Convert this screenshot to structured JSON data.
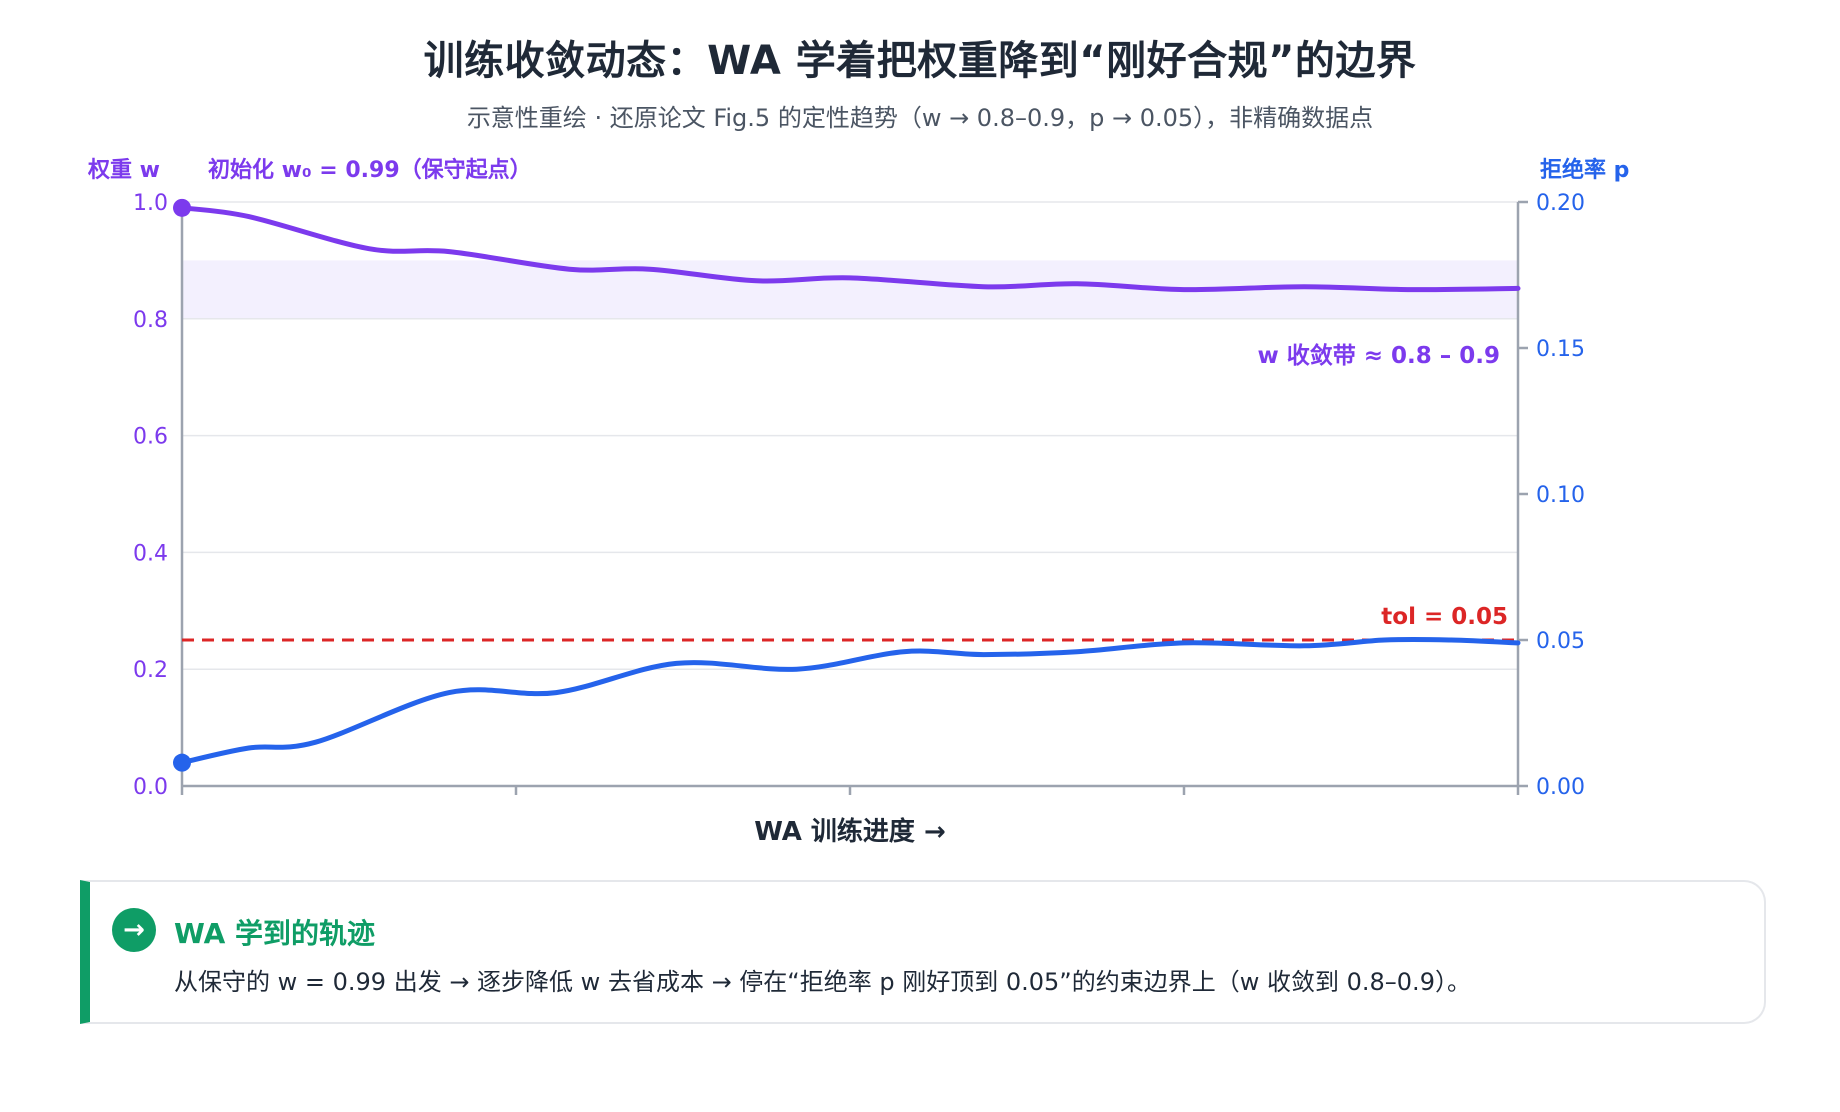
{
  "title": "训练收敛动态：WA 学着把权重降到“刚好合规”的边界",
  "subtitle": "示意性重绘 · 还原论文 Fig.5 的定性趋势（w → 0.8–0.9，p → 0.05），非精确数据点",
  "summary": {
    "icon": "→",
    "title": "WA 学到的轨迹",
    "body": "从保守的 w = 0.99 出发 → 逐步降低 w 去省成本 → 停在“拒绝率 p 刚好顶到 0.05”的约束边界上（w 收敛到 0.8–0.9）。"
  },
  "colors": {
    "weight": "#7c3aed",
    "rejection": "#2563eb",
    "tolerance": "#dc2626",
    "band": "#f3f0fe",
    "axis": "#9ca3af",
    "grid": "#e5e7eb",
    "accent": "#0f9d66"
  },
  "chart_data": {
    "type": "line",
    "title": "训练收敛动态：WA 学着把权重降到“刚好合规”的边界",
    "xlabel": "WA 训练进度 →",
    "ylabel_left": "权重 w",
    "ylabel_right": "拒绝率 p",
    "xlim": [
      0,
      1
    ],
    "ylim_left": [
      0,
      1.0
    ],
    "ylim_right": [
      0,
      0.2
    ],
    "yticks_left": [
      "0.0",
      "0.2",
      "0.4",
      "0.6",
      "0.8",
      "1.0"
    ],
    "yticks_right": [
      "0.00",
      "0.05",
      "0.10",
      "0.15",
      "0.20"
    ],
    "grid": true,
    "series": [
      {
        "name": "权重 w",
        "axis": "left",
        "x": [
          0,
          0.05,
          0.14,
          0.2,
          0.29,
          0.35,
          0.43,
          0.5,
          0.6,
          0.67,
          0.75,
          0.84,
          0.92,
          1.0
        ],
        "values": [
          0.99,
          0.975,
          0.92,
          0.915,
          0.885,
          0.885,
          0.865,
          0.87,
          0.855,
          0.86,
          0.85,
          0.855,
          0.85,
          0.852
        ]
      },
      {
        "name": "拒绝率 p",
        "axis": "right",
        "x": [
          0,
          0.05,
          0.1,
          0.2,
          0.28,
          0.37,
          0.46,
          0.54,
          0.6,
          0.67,
          0.75,
          0.84,
          0.9,
          0.95,
          1.0
        ],
        "values": [
          0.008,
          0.013,
          0.015,
          0.032,
          0.032,
          0.042,
          0.04,
          0.046,
          0.045,
          0.046,
          0.049,
          0.048,
          0.05,
          0.05,
          0.049
        ]
      }
    ],
    "tolerance": {
      "label": "tol = 0.05",
      "value": 0.05,
      "axis": "right"
    },
    "band": {
      "label": "w 收敛带 ≈ 0.8 – 0.9",
      "from": 0.8,
      "to": 0.9,
      "axis": "left"
    },
    "start_annotation": {
      "label": "初始化 w₀ = 0.99（保守起点）",
      "value": 0.99
    }
  }
}
